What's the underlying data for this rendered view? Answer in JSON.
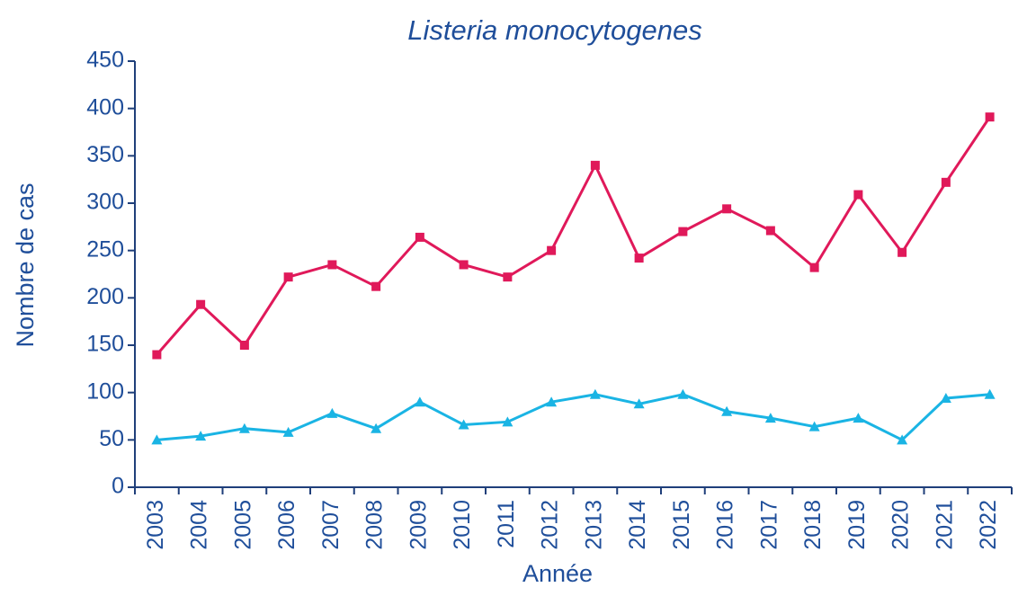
{
  "chart_data": {
    "type": "line",
    "title": "Listeria monocytogenes",
    "x_label": "Année",
    "y_label": "Nombre de cas",
    "categories": [
      "2003",
      "2004",
      "2005",
      "2006",
      "2007",
      "2008",
      "2009",
      "2010",
      "2011",
      "2012",
      "2013",
      "2014",
      "2015",
      "2016",
      "2017",
      "2018",
      "2019",
      "2020",
      "2021",
      "2022"
    ],
    "series": [
      {
        "color": "#e0195a",
        "marker": "square",
        "values": [
          140,
          193,
          150,
          222,
          235,
          212,
          264,
          235,
          222,
          250,
          340,
          242,
          270,
          294,
          271,
          232,
          309,
          248,
          322,
          391
        ]
      },
      {
        "color": "#1ab4e4",
        "marker": "triangle",
        "values": [
          50,
          54,
          62,
          58,
          78,
          62,
          90,
          66,
          69,
          90,
          98,
          88,
          98,
          80,
          73,
          64,
          73,
          50,
          94,
          98
        ]
      }
    ],
    "ylim": [
      0,
      450
    ],
    "yticks": [
      0,
      50,
      100,
      150,
      200,
      250,
      300,
      350,
      400,
      450
    ],
    "grid": false
  }
}
